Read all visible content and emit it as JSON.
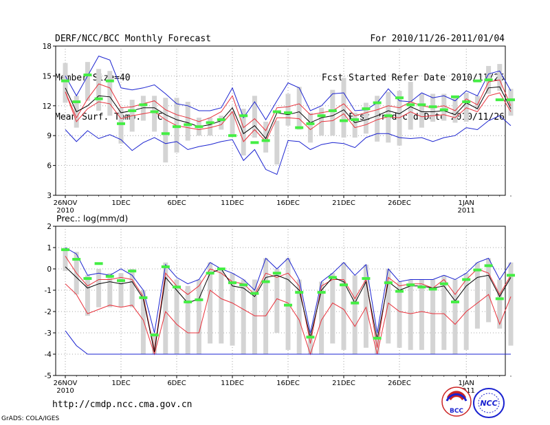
{
  "header": {
    "left": [
      "DERF/NCC/BCC Monthly Forecast",
      "Member Size=40",
      "Mean Surf. Temp.: °C"
    ],
    "right": [
      "For 2010/11/26-2011/01/04",
      "Fcst Started Refer Date 2010/11/25",
      "Fcst Produced Date 2010/11/26"
    ]
  },
  "footer": {
    "url": "http://cmdp.ncc.cma.gov.cn",
    "credit": "GrADS: COLA/IGES",
    "logo_bcc": "BCC",
    "logo_ncc": "NCC"
  },
  "colors": {
    "box": "#d4d4d4",
    "ensemble_mean": "#000000",
    "spread": "#e8303a",
    "extreme": "#1a22d0",
    "member_mark": "#44ee44",
    "grid": "#888888"
  },
  "chart_data": [
    {
      "type": "line",
      "title": "Mean Surf. Temp.: °C",
      "xlabel": "",
      "ylabel": "",
      "x_ticks": [
        {
          "day": 0,
          "label": "26NOV",
          "sub": "2010"
        },
        {
          "day": 5,
          "label": "1DEC"
        },
        {
          "day": 10,
          "label": "6DEC"
        },
        {
          "day": 15,
          "label": "11DEC"
        },
        {
          "day": 20,
          "label": "16DEC"
        },
        {
          "day": 25,
          "label": "21DEC"
        },
        {
          "day": 30,
          "label": "26DEC"
        },
        {
          "day": 36,
          "label": "1JAN",
          "sub": "2011"
        }
      ],
      "ylim": [
        3,
        18
      ],
      "y_ticks": [
        3,
        6,
        9,
        12,
        15,
        18
      ],
      "grid": true,
      "series": [
        {
          "name": "max",
          "color": "#1a22d0",
          "values": [
            15.0,
            13.0,
            15.0,
            17.0,
            16.6,
            13.8,
            13.6,
            13.8,
            14.1,
            13.2,
            12.2,
            12.0,
            11.5,
            11.5,
            11.8,
            13.8,
            10.8,
            12.4,
            10.6,
            12.5,
            14.3,
            13.8,
            11.5,
            12.0,
            13.2,
            13.3,
            11.5,
            11.6,
            12.3,
            13.7,
            12.5,
            12.4,
            13.3,
            12.8,
            13.0,
            12.5,
            13.5,
            13.0,
            15.2,
            15.5,
            13.5
          ]
        },
        {
          "name": "upper",
          "color": "#e8303a",
          "values": [
            13.4,
            10.8,
            12.7,
            14.2,
            13.8,
            11.8,
            11.9,
            12.2,
            12.5,
            11.6,
            11.1,
            10.8,
            10.4,
            10.8,
            11.4,
            13.0,
            9.8,
            10.7,
            9.5,
            11.8,
            11.9,
            12.2,
            11.1,
            11.3,
            11.5,
            12.2,
            11.0,
            11.3,
            11.6,
            12.0,
            11.8,
            12.4,
            12.0,
            11.8,
            12.0,
            11.5,
            12.7,
            12.1,
            14.4,
            14.6,
            12.0
          ]
        },
        {
          "name": "mean",
          "color": "#000000",
          "values": [
            13.8,
            11.4,
            12.0,
            13.0,
            12.9,
            11.3,
            11.5,
            11.8,
            11.8,
            11.1,
            10.6,
            10.3,
            9.9,
            10.1,
            10.5,
            11.8,
            9.2,
            10.0,
            8.7,
            11.3,
            11.1,
            11.4,
            10.3,
            10.8,
            11.0,
            11.6,
            10.3,
            10.6,
            11.0,
            11.5,
            11.2,
            11.9,
            11.4,
            11.4,
            11.5,
            11.1,
            12.3,
            11.7,
            13.8,
            13.9,
            11.7
          ]
        },
        {
          "name": "lower",
          "color": "#e8303a",
          "values": [
            13.4,
            10.4,
            11.7,
            12.4,
            12.2,
            10.7,
            11.0,
            11.2,
            11.4,
            10.6,
            10.0,
            9.8,
            9.6,
            9.8,
            10.1,
            11.4,
            8.4,
            9.6,
            8.4,
            10.8,
            10.8,
            10.7,
            9.6,
            10.4,
            10.5,
            11.2,
            9.8,
            10.1,
            10.6,
            10.9,
            10.8,
            11.4,
            10.9,
            11.0,
            11.1,
            10.8,
            11.8,
            11.4,
            13.0,
            13.3,
            11.4
          ]
        },
        {
          "name": "min",
          "color": "#1a22d0",
          "values": [
            9.6,
            8.4,
            9.5,
            8.7,
            9.1,
            8.6,
            7.5,
            8.3,
            8.8,
            8.2,
            8.4,
            7.6,
            7.9,
            8.1,
            8.4,
            8.6,
            6.5,
            7.6,
            5.6,
            5.1,
            8.5,
            8.4,
            7.6,
            8.1,
            8.3,
            8.2,
            7.8,
            8.8,
            9.2,
            9.2,
            8.8,
            8.7,
            8.8,
            8.4,
            8.8,
            9.0,
            9.8,
            9.6,
            10.5,
            11.0,
            10.0
          ]
        }
      ],
      "boxes": [
        {
          "day": 0,
          "low": 12.3,
          "high": 16.3
        },
        {
          "day": 1,
          "low": 9.8,
          "high": 13.0
        },
        {
          "day": 2,
          "low": 12.5,
          "high": 16.4
        },
        {
          "day": 3,
          "low": 11.5,
          "high": 15.7
        },
        {
          "day": 4,
          "low": 11.0,
          "high": 15.5
        },
        {
          "day": 5,
          "low": 8.2,
          "high": 11.8
        },
        {
          "day": 6,
          "low": 9.4,
          "high": 12.6
        },
        {
          "day": 7,
          "low": 10.5,
          "high": 13.0
        },
        {
          "day": 8,
          "low": 9.4,
          "high": 13.0
        },
        {
          "day": 9,
          "low": 6.3,
          "high": 12.8
        },
        {
          "day": 10,
          "low": 7.3,
          "high": 12.8
        },
        {
          "day": 11,
          "low": 8.5,
          "high": 12.4
        },
        {
          "day": 12,
          "low": 9.0,
          "high": 10.8
        },
        {
          "day": 13,
          "low": 9.0,
          "high": 10.8
        },
        {
          "day": 14,
          "low": 9.6,
          "high": 11.0
        },
        {
          "day": 15,
          "low": 8.9,
          "high": 11.5
        },
        {
          "day": 16,
          "low": 7.0,
          "high": 11.7
        },
        {
          "day": 17,
          "low": 8.8,
          "high": 13.0
        },
        {
          "day": 18,
          "low": 7.3,
          "high": 10.4
        },
        {
          "day": 19,
          "low": 6.1,
          "high": 10.5
        },
        {
          "day": 20,
          "low": 10.0,
          "high": 13.2
        },
        {
          "day": 21,
          "low": 9.6,
          "high": 13.9
        },
        {
          "day": 22,
          "low": 8.3,
          "high": 11.3
        },
        {
          "day": 23,
          "low": 9.0,
          "high": 11.8
        },
        {
          "day": 24,
          "low": 9.0,
          "high": 13.6
        },
        {
          "day": 25,
          "low": 8.8,
          "high": 14.8
        },
        {
          "day": 26,
          "low": 8.8,
          "high": 11.3
        },
        {
          "day": 27,
          "low": 9.2,
          "high": 12.3
        },
        {
          "day": 28,
          "low": 8.4,
          "high": 13.0
        },
        {
          "day": 29,
          "low": 8.3,
          "high": 13.4
        },
        {
          "day": 30,
          "low": 8.0,
          "high": 13.5
        },
        {
          "day": 31,
          "low": 9.6,
          "high": 14.4
        },
        {
          "day": 32,
          "low": 9.8,
          "high": 13.2
        },
        {
          "day": 33,
          "low": 10.4,
          "high": 13.2
        },
        {
          "day": 34,
          "low": 10.5,
          "high": 13.2
        },
        {
          "day": 35,
          "low": 10.3,
          "high": 13.0
        },
        {
          "day": 36,
          "low": 10.4,
          "high": 13.3
        },
        {
          "day": 37,
          "low": 11.6,
          "high": 13.0
        },
        {
          "day": 38,
          "low": 13.2,
          "high": 16.0
        },
        {
          "day": 39,
          "low": 13.5,
          "high": 16.2
        },
        {
          "day": 40,
          "low": 11.0,
          "high": 13.7
        }
      ],
      "marks": [
        14.5,
        12.4,
        15.1,
        12.7,
        14.5,
        10.2,
        11.5,
        12.1,
        11.4,
        9.2,
        9.9,
        10.1,
        9.9,
        10.3,
        10.6,
        9.0,
        11.0,
        8.3,
        8.5,
        11.4,
        11.3,
        9.8,
        10.2,
        11.0,
        11.5,
        10.5,
        10.6,
        11.7,
        12.3,
        11.0,
        12.8,
        12.1,
        12.1,
        11.9,
        11.6,
        12.9,
        12.4,
        14.5,
        14.6,
        12.6,
        12.6
      ]
    },
    {
      "type": "line",
      "title": "Prec.: log(mm/d)",
      "xlabel": "",
      "ylabel": "",
      "x_ticks": [
        {
          "day": 0,
          "label": "26NOV",
          "sub": "2010"
        },
        {
          "day": 5,
          "label": "1DEC"
        },
        {
          "day": 10,
          "label": "6DEC"
        },
        {
          "day": 15,
          "label": "11DEC"
        },
        {
          "day": 20,
          "label": "16DEC"
        },
        {
          "day": 25,
          "label": "21DEC"
        },
        {
          "day": 30,
          "label": "26DEC"
        },
        {
          "day": 36,
          "label": "1JAN",
          "sub": "2011"
        }
      ],
      "ylim": [
        -5,
        2
      ],
      "y_ticks": [
        -5,
        -4,
        -3,
        -2,
        -1,
        0,
        1,
        2
      ],
      "grid": true,
      "series": [
        {
          "name": "max",
          "color": "#1a22d0",
          "values": [
            1.0,
            0.7,
            -0.3,
            -0.2,
            -0.3,
            0.0,
            -0.3,
            -1.0,
            -3.0,
            0.2,
            -0.4,
            -0.7,
            -0.5,
            0.3,
            0.0,
            -0.2,
            -0.5,
            -1.0,
            0.5,
            0.0,
            0.5,
            -0.5,
            -3.0,
            -0.6,
            -0.2,
            0.3,
            -0.3,
            0.2,
            -3.0,
            0.0,
            -0.6,
            -0.5,
            -0.5,
            -0.5,
            -0.3,
            -0.5,
            -0.2,
            0.3,
            0.5,
            -0.5,
            0.3
          ]
        },
        {
          "name": "upper",
          "color": "#e8303a",
          "values": [
            0.6,
            -0.2,
            -0.8,
            -0.5,
            -0.5,
            -0.4,
            -0.5,
            -1.3,
            -3.8,
            -0.2,
            -0.8,
            -1.2,
            -0.8,
            0.0,
            -0.2,
            -0.6,
            -0.7,
            -1.2,
            -0.2,
            -0.4,
            -0.2,
            -0.8,
            -3.5,
            -0.8,
            -0.5,
            -0.5,
            -1.4,
            -0.5,
            -3.7,
            -0.4,
            -0.8,
            -0.7,
            -0.7,
            -0.9,
            -0.5,
            -1.2,
            -0.5,
            0.0,
            -0.2,
            -1.2,
            -0.3
          ]
        },
        {
          "name": "mean",
          "color": "#000000",
          "values": [
            0.1,
            -0.4,
            -0.9,
            -0.7,
            -0.6,
            -0.7,
            -0.6,
            -1.4,
            -3.9,
            -0.4,
            -1.0,
            -1.6,
            -1.4,
            -0.2,
            0.0,
            -0.8,
            -0.9,
            -1.3,
            -0.4,
            -0.3,
            -0.5,
            -1.0,
            -3.2,
            -1.0,
            -0.4,
            -0.6,
            -1.6,
            -0.6,
            -3.3,
            -0.6,
            -1.0,
            -0.8,
            -0.8,
            -0.9,
            -0.8,
            -1.5,
            -0.8,
            -0.4,
            -0.3,
            -1.3,
            -0.4
          ]
        },
        {
          "name": "lower",
          "color": "#e8303a",
          "values": [
            -0.7,
            -1.2,
            -2.1,
            -1.9,
            -1.7,
            -1.8,
            -1.7,
            -2.4,
            -4.0,
            -2.0,
            -2.6,
            -3.0,
            -3.0,
            -1.0,
            -1.4,
            -1.6,
            -1.9,
            -2.2,
            -2.2,
            -1.4,
            -1.6,
            -2.4,
            -4.0,
            -2.4,
            -1.6,
            -1.9,
            -2.7,
            -1.8,
            -4.0,
            -1.6,
            -2.0,
            -2.1,
            -2.0,
            -2.1,
            -2.1,
            -2.6,
            -2.0,
            -1.6,
            -1.2,
            -2.6,
            -1.3
          ]
        },
        {
          "name": "min",
          "color": "#1a22d0",
          "values": [
            -2.9,
            -3.6,
            -4.0,
            -4.0,
            -4.0,
            -4.0,
            -4.0,
            -4.0,
            -4.0,
            -4.0,
            -4.0,
            -4.0,
            -4.0,
            -4.0,
            -4.0,
            -4.0,
            -4.0,
            -4.0,
            -4.0,
            -4.0,
            -4.0,
            -4.0,
            -4.0,
            -4.0,
            -4.0,
            -4.0,
            -4.0,
            -4.0,
            -4.0,
            -4.0,
            -4.0,
            -4.0,
            -4.0,
            -4.0,
            -4.0,
            -4.0,
            -4.0,
            -4.0,
            -4.0,
            -4.0,
            -4.0
          ]
        }
      ],
      "boxes": [
        {
          "day": 0,
          "low": -0.1,
          "high": 1.0
        },
        {
          "day": 1,
          "low": -1.2,
          "high": 0.8
        },
        {
          "day": 2,
          "low": -2.2,
          "high": -0.3
        },
        {
          "day": 3,
          "low": -1.8,
          "high": 0.0
        },
        {
          "day": 4,
          "low": -1.8,
          "high": -0.2
        },
        {
          "day": 5,
          "low": -1.8,
          "high": -0.2
        },
        {
          "day": 6,
          "low": -1.8,
          "high": 0.0
        },
        {
          "day": 7,
          "low": -4.0,
          "high": -1.0
        },
        {
          "day": 8,
          "low": -4.0,
          "high": -3.0
        },
        {
          "day": 9,
          "low": -4.0,
          "high": 0.3
        },
        {
          "day": 10,
          "low": -4.0,
          "high": -0.5
        },
        {
          "day": 11,
          "low": -4.0,
          "high": -0.8
        },
        {
          "day": 12,
          "low": -4.0,
          "high": -0.5
        },
        {
          "day": 13,
          "low": -3.5,
          "high": 0.3
        },
        {
          "day": 14,
          "low": -3.5,
          "high": 0.0
        },
        {
          "day": 15,
          "low": -3.6,
          "high": -0.2
        },
        {
          "day": 16,
          "low": -4.0,
          "high": -0.5
        },
        {
          "day": 17,
          "low": -4.0,
          "high": -0.5
        },
        {
          "day": 18,
          "low": -4.0,
          "high": 0.5
        },
        {
          "day": 19,
          "low": -3.0,
          "high": 0.0
        },
        {
          "day": 20,
          "low": -3.8,
          "high": 0.5
        },
        {
          "day": 21,
          "low": -4.0,
          "high": -0.5
        },
        {
          "day": 22,
          "low": -4.0,
          "high": -3.0
        },
        {
          "day": 23,
          "low": -4.0,
          "high": -0.6
        },
        {
          "day": 24,
          "low": -3.5,
          "high": -0.2
        },
        {
          "day": 25,
          "low": -3.8,
          "high": 0.3
        },
        {
          "day": 26,
          "low": -4.0,
          "high": -0.3
        },
        {
          "day": 27,
          "low": -3.7,
          "high": 0.2
        },
        {
          "day": 28,
          "low": -4.0,
          "high": -3.0
        },
        {
          "day": 29,
          "low": -3.5,
          "high": 0.0
        },
        {
          "day": 30,
          "low": -3.7,
          "high": -0.6
        },
        {
          "day": 31,
          "low": -3.8,
          "high": -0.5
        },
        {
          "day": 32,
          "low": -3.8,
          "high": -0.5
        },
        {
          "day": 33,
          "low": -4.0,
          "high": -0.5
        },
        {
          "day": 34,
          "low": -3.8,
          "high": -0.3
        },
        {
          "day": 35,
          "low": -4.0,
          "high": -0.5
        },
        {
          "day": 36,
          "low": -3.8,
          "high": -0.2
        },
        {
          "day": 37,
          "low": -2.8,
          "high": 0.3
        },
        {
          "day": 38,
          "low": -2.5,
          "high": 0.5
        },
        {
          "day": 39,
          "low": -2.8,
          "high": -0.5
        },
        {
          "day": 40,
          "low": -3.6,
          "high": 0.3
        }
      ],
      "marks": [
        0.9,
        0.45,
        -0.45,
        0.25,
        -0.35,
        -0.55,
        -0.1,
        -1.35,
        -3.1,
        0.1,
        -0.85,
        -1.55,
        -1.45,
        -0.2,
        0.0,
        -0.65,
        -0.75,
        -1.15,
        -0.6,
        -0.2,
        -1.7,
        -1.1,
        -3.2,
        -1.1,
        -0.4,
        -0.75,
        -1.6,
        -0.45,
        -3.25,
        -0.65,
        -1.05,
        -0.75,
        -0.85,
        -0.95,
        -0.7,
        -1.55,
        -0.5,
        -0.05,
        0.15,
        -1.4,
        -0.3
      ]
    }
  ]
}
